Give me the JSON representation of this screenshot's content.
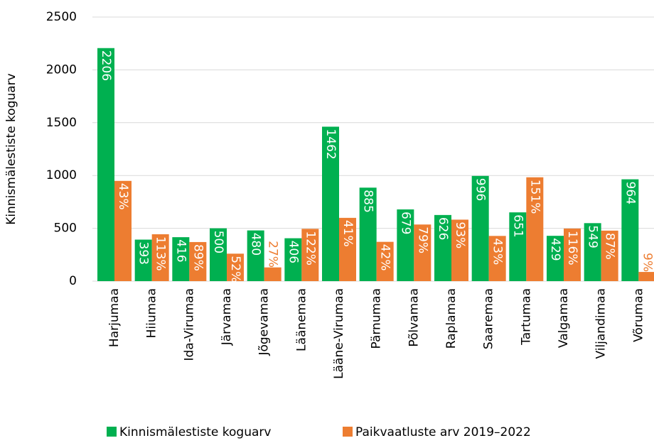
{
  "chart_data": {
    "type": "bar",
    "y_label": "Kinnismälestiste koguarv",
    "categories": [
      "Harjumaa",
      "Hiiumaa",
      "Ida-Virumaa",
      "Järvamaa",
      "Jõgevamaa",
      "Läänemaa",
      "Lääne-Virumaa",
      "Pärnumaa",
      "Põlvamaa",
      "Raplamaa",
      "Saaremaa",
      "Tartumaa",
      "Valgamaa",
      "Viljandimaa",
      "Võrumaa"
    ],
    "series": [
      {
        "name": "Kinnismälestiste koguarv",
        "color": "#00b050",
        "values": [
          2206,
          393,
          416,
          500,
          480,
          406,
          1462,
          885,
          679,
          626,
          996,
          651,
          429,
          549,
          964
        ]
      },
      {
        "name": "Paikvaatluste arv 2019–2022",
        "color": "#ed7d31",
        "values": [
          949,
          444,
          370,
          260,
          130,
          495,
          599,
          372,
          536,
          582,
          428,
          983,
          498,
          478,
          87
        ],
        "value_labels": [
          "43%",
          "113%",
          "89%",
          "52%",
          "27%",
          "122%",
          "41%",
          "42%",
          "79%",
          "93%",
          "43%",
          "151%",
          "116%",
          "87%",
          "9%"
        ]
      }
    ],
    "ylim": [
      0,
      2500
    ],
    "yticks": [
      0,
      500,
      1000,
      1500,
      2000,
      2500
    ],
    "grid": true,
    "legend": "bottom"
  }
}
